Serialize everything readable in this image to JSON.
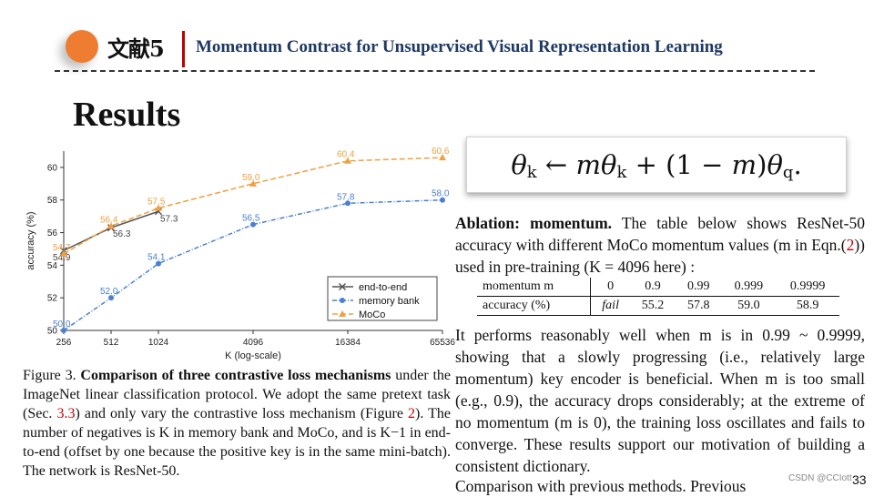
{
  "header": {
    "tag": "文献5",
    "title": "Momentum Contrast for Unsupervised Visual Representation Learning"
  },
  "section_title": "Results",
  "chart_data": {
    "type": "line",
    "x_scale": "log",
    "x": [
      256,
      512,
      1024,
      4096,
      16384,
      65536
    ],
    "xticklabels": [
      "256",
      "512",
      "1024",
      "4096",
      "16384",
      "65536"
    ],
    "xlabel": "K (log-scale)",
    "ylabel": "accuracy (%)",
    "ylim": [
      50,
      61
    ],
    "yticks": [
      50,
      52,
      54,
      56,
      58,
      60
    ],
    "legend_position": "bottom-right",
    "series": [
      {
        "name": "end-to-end",
        "x": [
          256,
          512,
          1024
        ],
        "values": [
          54.9,
          56.3,
          57.3
        ],
        "color": "#555555",
        "marker": "x",
        "labels": [
          "54.9",
          "56.3",
          "57.3"
        ]
      },
      {
        "name": "memory bank",
        "x": [
          256,
          512,
          1024,
          4096,
          16384,
          65536
        ],
        "values": [
          50.0,
          52.0,
          54.1,
          56.5,
          57.8,
          58.0
        ],
        "color": "#4a7fd4",
        "marker": "circle",
        "labels": [
          "50.0",
          "52.0",
          "54.1",
          "56.5",
          "57.8",
          "58.0"
        ]
      },
      {
        "name": "MoCo",
        "x": [
          256,
          512,
          1024,
          4096,
          16384,
          65536
        ],
        "values": [
          54.7,
          56.4,
          57.5,
          59.0,
          60.4,
          60.6
        ],
        "color": "#f0a040",
        "marker": "triangle",
        "labels": [
          "54.7",
          "56.4",
          "57.5",
          "59.0",
          "60.4",
          "60.6"
        ]
      }
    ]
  },
  "figure_caption": {
    "label": "Figure 3.",
    "bold": "Comparison of three contrastive loss mechanisms",
    "part1": " under the ImageNet linear classification protocol. We adopt the same pretext task (Sec. ",
    "ref1": "3.3",
    "part2": ") and only vary the contrastive loss mechanism (Figure ",
    "ref2": "2",
    "part3": "). The number of negatives is K in memory bank and MoCo, and is K−1 in end-to-end (offset by one because the positive key is in the same mini-batch). The network is ResNet-50."
  },
  "equation": {
    "theta": "θ",
    "sub_k": "k",
    "arrow": " ← ",
    "m": "m",
    "plus": " + (1 − ",
    "close": ")",
    "sub_q": "q",
    "end": "."
  },
  "ablation": {
    "heading": "Ablation: momentum.",
    "text": " The table below shows ResNet-50 accuracy with different MoCo momentum values (m in Eqn.(",
    "ref": "2",
    "text2": ")) used in pre-training (K = 4096 here) :"
  },
  "ablation_table": {
    "row1_header": "momentum m",
    "momentum": [
      "0",
      "0.9",
      "0.99",
      "0.999",
      "0.9999"
    ],
    "row2_header": "accuracy (%)",
    "accuracy": [
      "fail",
      "55.2",
      "57.8",
      "59.0",
      "58.9"
    ]
  },
  "body_text": "It performs reasonably well when m is in 0.99 ~ 0.9999, showing that a slowly progressing (i.e., relatively large momentum) key encoder is beneficial. When m is too small (e.g., 0.9), the accuracy drops considerably; at the extreme of no momentum (m is 0), the training loss oscillates and fails to converge. These results support our motivation of building a consistent dictionary.",
  "cut_line": "Comparison with previous methods. Previous",
  "watermark": "CSDN @CCIott",
  "page_number": "33"
}
